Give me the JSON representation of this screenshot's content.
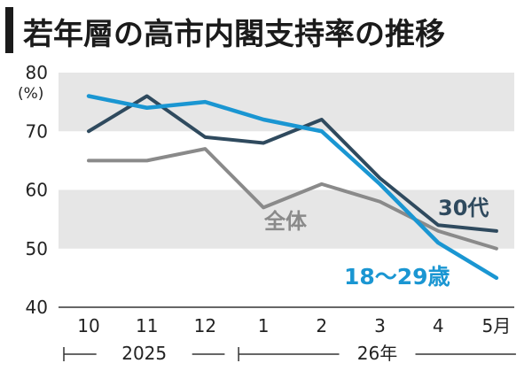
{
  "chart_data": {
    "type": "line",
    "title": "若年層の高市内閣支持率の推移",
    "ylabel": "(%)",
    "ylim": [
      40,
      80
    ],
    "yticks": [
      "40",
      "50",
      "60",
      "70",
      "80"
    ],
    "categories": [
      "10",
      "11",
      "12",
      "1",
      "2",
      "3",
      "4",
      "5月"
    ],
    "year_groups": [
      {
        "label": "2025",
        "from": 0,
        "to": 2
      },
      {
        "label": "26年",
        "from": 3,
        "to": 7
      }
    ],
    "grid": "alternating horizontal bands",
    "series": [
      {
        "name": "全体",
        "color": "#8a8a8a",
        "values": [
          65,
          65,
          67,
          57,
          61,
          58,
          53,
          50
        ]
      },
      {
        "name": "30代",
        "color": "#2f4a5e",
        "values": [
          70,
          76,
          69,
          68,
          72,
          62,
          54,
          53
        ]
      },
      {
        "name": "18〜29歳",
        "color": "#1a96d2",
        "values": [
          76,
          74,
          75,
          72,
          70,
          61,
          51,
          45
        ]
      }
    ]
  }
}
